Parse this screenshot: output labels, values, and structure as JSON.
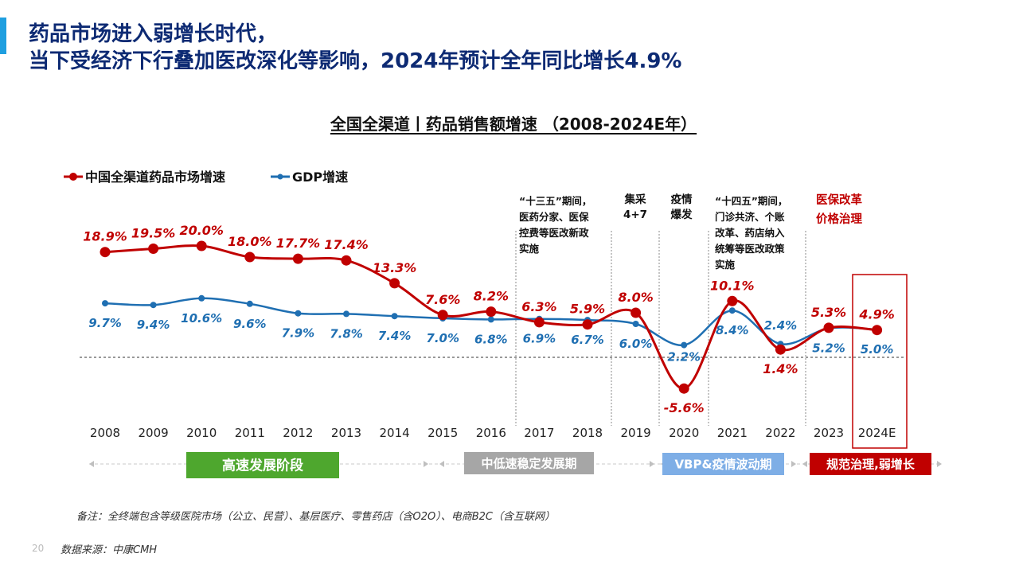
{
  "page": {
    "title_line1": "药品市场进入弱增长时代，",
    "title_line2": "当下受经济下行叠加医改深化等影响，2024年预计全年同比增长4.9%",
    "note": "备注：全终端包含等级医院市场（公立、民营）、基层医疗、零售药店（含O2O）、电商B2C（含互联网）",
    "source": "数据来源：中康CMH",
    "page_number": "20"
  },
  "colors": {
    "title": "#0d2a73",
    "accent": "#1f9fe0",
    "red": "#c00000",
    "blue": "#1f6fb2"
  },
  "chart_data": {
    "type": "line",
    "title": "全国全渠道丨药品销售额增速 （2008-2024E年）",
    "categories": [
      "2008",
      "2009",
      "2010",
      "2011",
      "2012",
      "2013",
      "2014",
      "2015",
      "2016",
      "2017",
      "2018",
      "2019",
      "2020",
      "2021",
      "2022",
      "2023",
      "2024E"
    ],
    "series": [
      {
        "name": "中国全渠道药品市场增速",
        "color": "#c00000",
        "values": [
          18.9,
          19.5,
          20.0,
          18.0,
          17.7,
          17.4,
          13.3,
          7.6,
          8.2,
          6.3,
          5.9,
          8.0,
          -5.6,
          10.1,
          1.4,
          5.3,
          4.9
        ],
        "labels": [
          "18.9%",
          "19.5%",
          "20.0%",
          "18.0%",
          "17.7%",
          "17.4%",
          "13.3%",
          "7.6%",
          "8.2%",
          "6.3%",
          "5.9%",
          "8.0%",
          "-5.6%",
          "10.1%",
          "1.4%",
          "5.3%",
          "4.9%"
        ]
      },
      {
        "name": "GDP增速",
        "color": "#1f6fb2",
        "values": [
          9.7,
          9.4,
          10.6,
          9.6,
          7.9,
          7.8,
          7.4,
          7.0,
          6.8,
          6.9,
          6.7,
          6.0,
          2.2,
          8.4,
          2.4,
          5.2,
          5.0
        ],
        "labels": [
          "9.7%",
          "9.4%",
          "10.6%",
          "9.6%",
          "7.9%",
          "7.8%",
          "7.4%",
          "7.0%",
          "6.8%",
          "6.9%",
          "6.7%",
          "6.0%",
          "2.2%",
          "8.4%",
          "2.4%",
          "5.2%",
          "5.0%"
        ]
      }
    ],
    "baseline": 0,
    "legend_position": "top-left",
    "annotations": [
      {
        "lines": [
          "“十三五”期间，",
          "医药分家、医保",
          "控费等医改新政",
          "实施"
        ],
        "style": "dark"
      },
      {
        "lines": [
          "集采",
          "4+7"
        ],
        "style": "dark"
      },
      {
        "lines": [
          "疫情",
          "爆发"
        ],
        "style": "dark"
      },
      {
        "lines": [
          "“十四五”期间，",
          "门诊共济、个账",
          "改革、药店纳入",
          "统筹等医改政策",
          "实施"
        ],
        "style": "dark"
      },
      {
        "lines": [
          "医保改革",
          "价格治理"
        ],
        "style": "red"
      }
    ],
    "phases": [
      {
        "label": "高速发展阶段",
        "color": "#4ea72e"
      },
      {
        "label": "中低速稳定发展期",
        "color": "#a6a6a6"
      },
      {
        "label": "VBP&疫情波动期",
        "color": "#7eaee6"
      },
      {
        "label": "规范治理,弱增长",
        "color": "#c00000"
      }
    ]
  }
}
